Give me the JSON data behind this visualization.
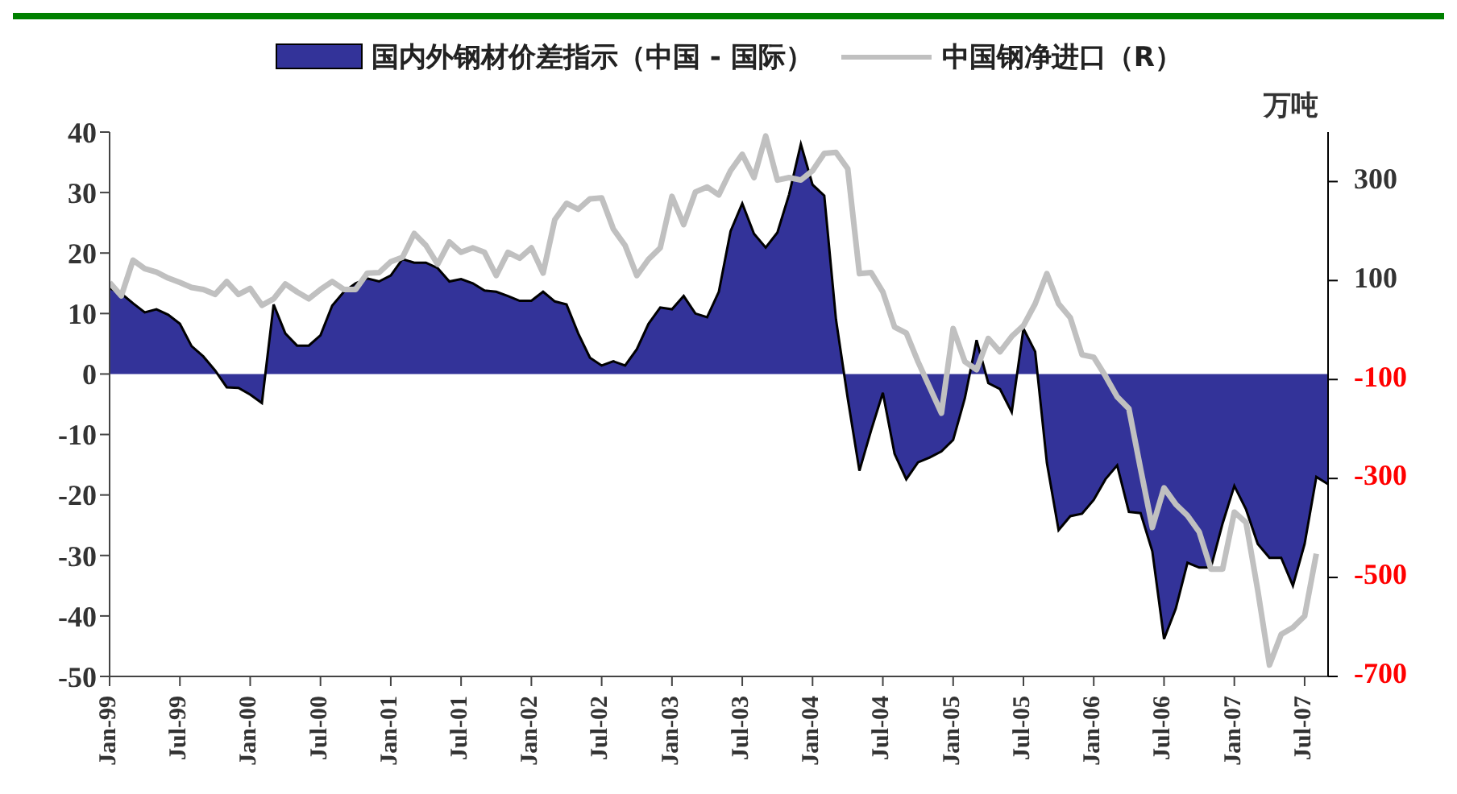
{
  "chart_data": {
    "type": "area",
    "y2label": "万吨",
    "x": [
      "1999-01",
      "1999-02",
      "1999-03",
      "1999-04",
      "1999-05",
      "1999-06",
      "1999-07",
      "1999-08",
      "1999-09",
      "1999-10",
      "1999-11",
      "1999-12",
      "2000-01",
      "2000-02",
      "2000-03",
      "2000-04",
      "2000-05",
      "2000-06",
      "2000-07",
      "2000-08",
      "2000-09",
      "2000-10",
      "2000-11",
      "2000-12",
      "2001-01",
      "2001-02",
      "2001-03",
      "2001-04",
      "2001-05",
      "2001-06",
      "2001-07",
      "2001-08",
      "2001-09",
      "2001-10",
      "2001-11",
      "2001-12",
      "2002-01",
      "2002-02",
      "2002-03",
      "2002-04",
      "2002-05",
      "2002-06",
      "2002-07",
      "2002-08",
      "2002-09",
      "2002-10",
      "2002-11",
      "2002-12",
      "2003-01",
      "2003-02",
      "2003-03",
      "2003-04",
      "2003-05",
      "2003-06",
      "2003-07",
      "2003-08",
      "2003-09",
      "2003-10",
      "2003-11",
      "2003-12",
      "2004-01",
      "2004-02",
      "2004-03",
      "2004-04",
      "2004-05",
      "2004-06",
      "2004-07",
      "2004-08",
      "2004-09",
      "2004-10",
      "2004-11",
      "2004-12",
      "2005-01",
      "2005-02",
      "2005-03",
      "2005-04",
      "2005-05",
      "2005-06",
      "2005-07",
      "2005-08",
      "2005-09",
      "2005-10",
      "2005-11",
      "2005-12",
      "2006-01",
      "2006-02",
      "2006-03",
      "2006-04",
      "2006-05",
      "2006-06",
      "2006-07",
      "2006-08",
      "2006-09",
      "2006-10",
      "2006-11",
      "2006-12",
      "2007-01",
      "2007-02",
      "2007-03",
      "2007-04",
      "2007-05",
      "2007-06",
      "2007-07",
      "2007-08",
      "2007-09"
    ],
    "series": [
      {
        "name": "国内外钢材价差指示（中国 - 国际）",
        "color": "#333399",
        "values": [
          14.2,
          13.3,
          11.7,
          10.2,
          10.7,
          9.8,
          8.3,
          4.6,
          2.9,
          0.6,
          -2.2,
          -2.3,
          -3.4,
          -4.8,
          11.5,
          6.7,
          4.7,
          4.7,
          6.4,
          11.3,
          13.6,
          15.0,
          15.8,
          15.3,
          16.3,
          19.0,
          18.4,
          18.4,
          17.5,
          15.3,
          15.7,
          15.0,
          13.8,
          13.6,
          12.9,
          12.1,
          12.1,
          13.6,
          12.0,
          11.5,
          6.7,
          2.7,
          1.4,
          2.1,
          1.4,
          4.1,
          8.3,
          11.0,
          10.7,
          12.9,
          10.0,
          9.4,
          13.6,
          23.6,
          28.2,
          23.2,
          20.9,
          23.4,
          29.7,
          38.0,
          31.3,
          29.5,
          9.0,
          -4.0,
          -16.0,
          -9.3,
          -3.1,
          -13.2,
          -17.4,
          -14.6,
          -13.8,
          -12.8,
          -10.9,
          -4.0,
          5.6,
          -1.5,
          -2.5,
          -6.3,
          7.5,
          3.7,
          -14.7,
          -25.8,
          -23.5,
          -23.1,
          -20.8,
          -17.4,
          -15.1,
          -22.8,
          -23.0,
          -29.3,
          -43.8,
          -38.8,
          -31.2,
          -32.0,
          -32.0,
          -24.7,
          -18.5,
          -22.4,
          -28.1,
          -30.4,
          -30.4,
          -35.0,
          -28.1,
          -17.0,
          -18.2
        ]
      },
      {
        "name": "中国钢净进口（R）",
        "type": "line",
        "axis": "y2",
        "color": "#c0c0c0",
        "values": [
          96,
          69,
          141,
          124,
          117,
          105,
          96,
          86,
          82,
          72,
          98,
          72,
          84,
          50,
          63,
          93,
          77,
          63,
          82,
          98,
          82,
          82,
          115,
          116,
          138,
          147,
          195,
          171,
          133,
          178,
          157,
          166,
          157,
          110,
          157,
          145,
          166,
          115,
          223,
          256,
          244,
          265,
          267,
          204,
          171,
          110,
          143,
          166,
          270,
          213,
          279,
          289,
          273,
          322,
          355,
          308,
          392,
          303,
          308,
          303,
          322,
          357,
          359,
          326,
          114,
          116,
          77,
          6,
          -6,
          -64,
          -116,
          -168,
          3,
          -64,
          -80,
          -17,
          -44,
          -13,
          9,
          53,
          114,
          53,
          25,
          -50,
          -55,
          -93,
          -135,
          -159,
          -281,
          -399,
          -319,
          -352,
          -375,
          -408,
          -483,
          -483,
          -368,
          -389,
          -526,
          -677,
          -615,
          -601,
          -578,
          -452,
          null
        ]
      }
    ],
    "xlim": [
      "1999-01",
      "2007-09"
    ],
    "xticks": [
      {
        "value": "1999-01",
        "label": "Jan-99"
      },
      {
        "value": "1999-07",
        "label": "Jul-99"
      },
      {
        "value": "2000-01",
        "label": "Jan-00"
      },
      {
        "value": "2000-07",
        "label": "Jul-00"
      },
      {
        "value": "2001-01",
        "label": "Jan-01"
      },
      {
        "value": "2001-07",
        "label": "Jul-01"
      },
      {
        "value": "2002-01",
        "label": "Jan-02"
      },
      {
        "value": "2002-07",
        "label": "Jul-02"
      },
      {
        "value": "2003-01",
        "label": "Jan-03"
      },
      {
        "value": "2003-07",
        "label": "Jul-03"
      },
      {
        "value": "2004-01",
        "label": "Jan-04"
      },
      {
        "value": "2004-07",
        "label": "Jul-04"
      },
      {
        "value": "2005-01",
        "label": "Jan-05"
      },
      {
        "value": "2005-07",
        "label": "Jul-05"
      },
      {
        "value": "2006-01",
        "label": "Jan-06"
      },
      {
        "value": "2006-07",
        "label": "Jul-06"
      },
      {
        "value": "2007-01",
        "label": "Jan-07"
      },
      {
        "value": "2007-07",
        "label": "Jul-07"
      }
    ],
    "ylim": [
      -50,
      40
    ],
    "yticks": [
      -50,
      -40,
      -30,
      -20,
      -10,
      0,
      10,
      20,
      30,
      40
    ],
    "y2lim": [
      -700,
      400
    ],
    "y2ticks": [
      -700,
      -500,
      -300,
      -100,
      100,
      300
    ],
    "legend": "top"
  }
}
